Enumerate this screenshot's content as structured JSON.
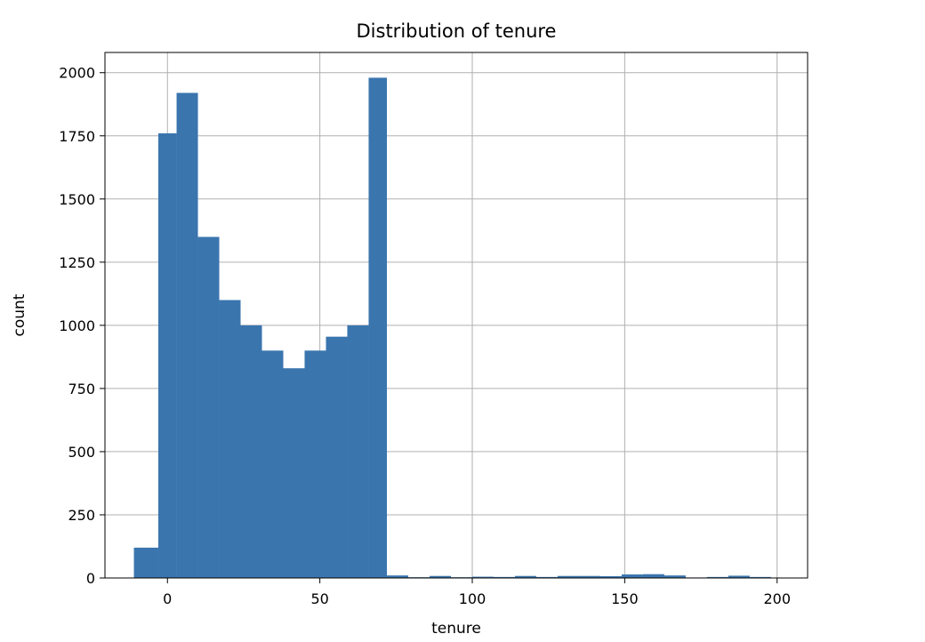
{
  "chart_data": {
    "type": "bar",
    "title": "Distribution of tenure",
    "xlabel": "tenure",
    "ylabel": "count",
    "xlim": [
      -20.5,
      210
    ],
    "ylim": [
      0,
      2080
    ],
    "grid": true,
    "bar_color": "#3a75ae",
    "xticks": [
      0,
      50,
      100,
      150,
      200
    ],
    "yticks": [
      0,
      250,
      500,
      750,
      1000,
      1250,
      1500,
      1750,
      2000
    ],
    "bins": [
      {
        "x0": -11.0,
        "x1": -3.0,
        "count": 120
      },
      {
        "x0": -3.0,
        "x1": 3.0,
        "count": 1760
      },
      {
        "x0": 3.0,
        "x1": 10.0,
        "count": 1920
      },
      {
        "x0": 10.0,
        "x1": 17.0,
        "count": 1350
      },
      {
        "x0": 17.0,
        "x1": 24.0,
        "count": 1100
      },
      {
        "x0": 24.0,
        "x1": 31.0,
        "count": 1000
      },
      {
        "x0": 31.0,
        "x1": 38.0,
        "count": 900
      },
      {
        "x0": 38.0,
        "x1": 45.0,
        "count": 830
      },
      {
        "x0": 45.0,
        "x1": 52.0,
        "count": 900
      },
      {
        "x0": 52.0,
        "x1": 59.0,
        "count": 955
      },
      {
        "x0": 59.0,
        "x1": 66.0,
        "count": 1000
      },
      {
        "x0": 66.0,
        "x1": 72.0,
        "count": 1980
      },
      {
        "x0": 72.0,
        "x1": 79.0,
        "count": 10
      },
      {
        "x0": 79.0,
        "x1": 86.0,
        "count": 3
      },
      {
        "x0": 86.0,
        "x1": 93.0,
        "count": 8
      },
      {
        "x0": 93.0,
        "x1": 100.0,
        "count": 3
      },
      {
        "x0": 100.0,
        "x1": 107.0,
        "count": 5
      },
      {
        "x0": 107.0,
        "x1": 114.0,
        "count": 4
      },
      {
        "x0": 114.0,
        "x1": 121.0,
        "count": 8
      },
      {
        "x0": 121.0,
        "x1": 128.0,
        "count": 4
      },
      {
        "x0": 128.0,
        "x1": 135.0,
        "count": 8
      },
      {
        "x0": 135.0,
        "x1": 142.0,
        "count": 8
      },
      {
        "x0": 142.0,
        "x1": 149.0,
        "count": 7
      },
      {
        "x0": 149.0,
        "x1": 156.0,
        "count": 14
      },
      {
        "x0": 156.0,
        "x1": 163.0,
        "count": 15
      },
      {
        "x0": 163.0,
        "x1": 170.0,
        "count": 10
      },
      {
        "x0": 170.0,
        "x1": 177.0,
        "count": 2
      },
      {
        "x0": 177.0,
        "x1": 184.0,
        "count": 4
      },
      {
        "x0": 184.0,
        "x1": 191.0,
        "count": 9
      },
      {
        "x0": 191.0,
        "x1": 198.0,
        "count": 4
      }
    ]
  }
}
